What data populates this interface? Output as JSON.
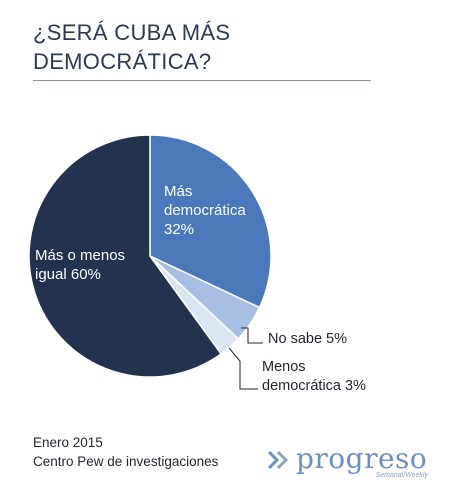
{
  "title_lines": [
    "¿SERÁ CUBA MÁS",
    "DEMOCRÁTICA?"
  ],
  "chart_data": {
    "type": "pie",
    "title": "¿SERÁ CUBA MÁS DEMOCRÁTICA?",
    "slices": [
      {
        "name": "Más democrática",
        "value": 32,
        "label_lines": [
          "Más",
          "democrática",
          "32%"
        ],
        "color": "#4a78bb",
        "label_color": "#ffffff"
      },
      {
        "name": "No sabe",
        "value": 5,
        "label_lines": [
          "No sabe 5%"
        ],
        "color": "#a7bfe2",
        "label_color": "#1f2430"
      },
      {
        "name": "Menos democrática",
        "value": 3,
        "label_lines": [
          "Menos",
          "democrática 3%"
        ],
        "color": "#dbe5f2",
        "label_color": "#1f2430"
      },
      {
        "name": "Más o menos igual",
        "value": 60,
        "label_lines": [
          "Más o menos",
          "igual 60%"
        ],
        "color": "#23324f",
        "label_color": "#ffffff"
      }
    ]
  },
  "footer": {
    "line1": "Enero 2015",
    "line2": "Centro Pew de investigaciones"
  },
  "logo": {
    "word": "progreso",
    "tagline": "Semanal/Weekly",
    "icon": "double-chevron-logo-icon",
    "color": "#6b8fc7"
  }
}
